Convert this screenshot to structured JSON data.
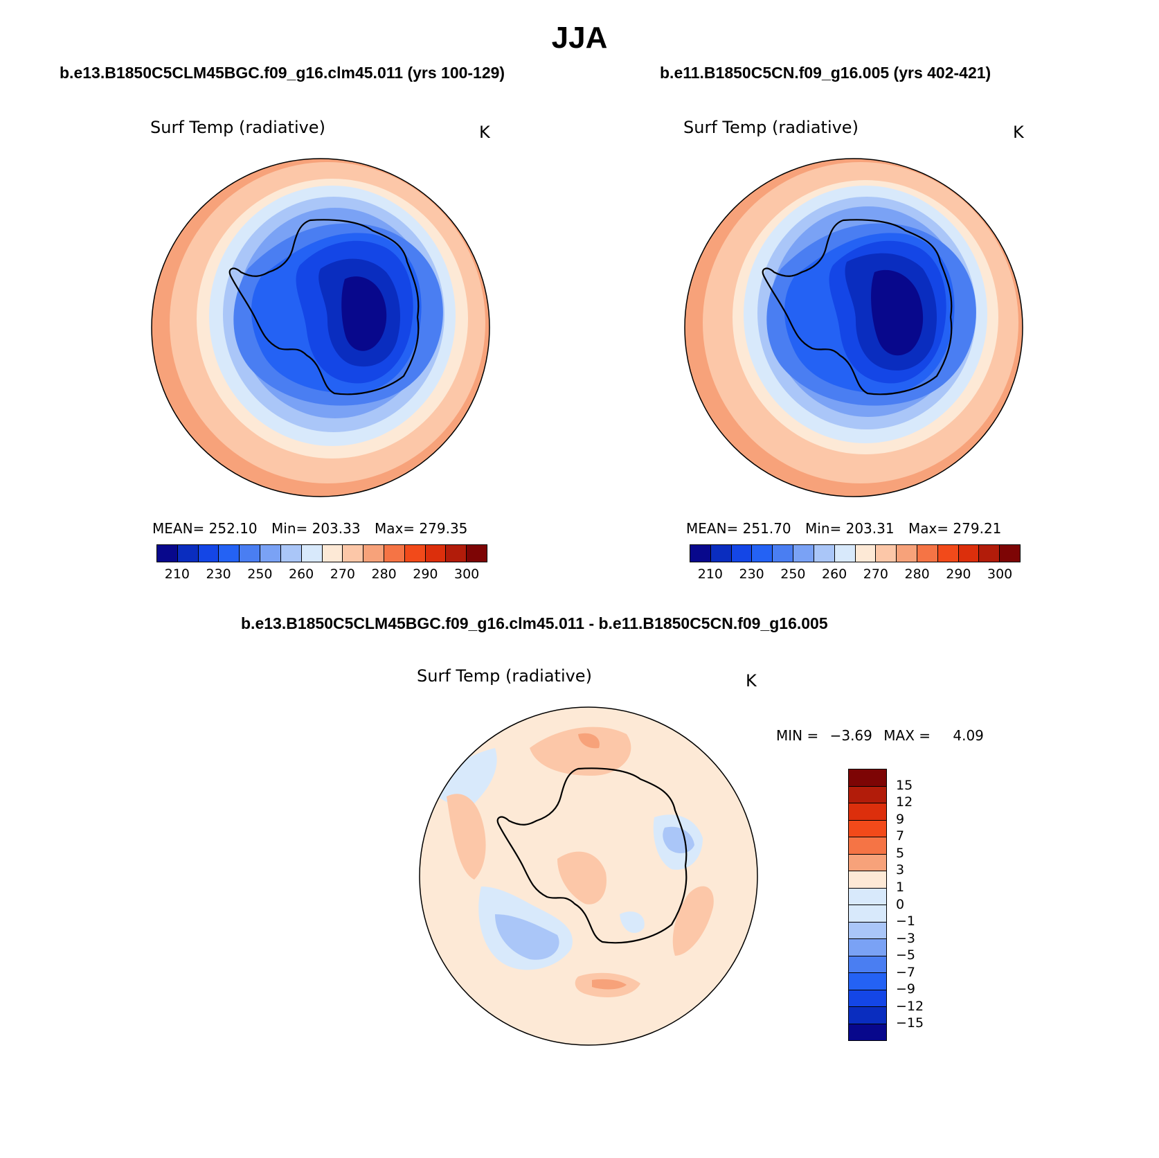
{
  "season": "JJA",
  "panel1": {
    "case": "b.e13.B1850C5CLM45BGC.f09_g16.clm45.011 (yrs 100-129)",
    "variable": "Surf Temp (radiative)",
    "units": "K",
    "mean_label": "MEAN=",
    "mean": "252.10",
    "min_label": "Min=",
    "min": "203.33",
    "max_label": "Max=",
    "max": "279.35"
  },
  "panel2": {
    "case": "b.e11.B1850C5CN.f09_g16.005 (yrs 402-421)",
    "variable": "Surf Temp (radiative)",
    "units": "K",
    "mean_label": "MEAN=",
    "mean": "251.70",
    "min_label": "Min=",
    "min": "203.31",
    "max_label": "Max=",
    "max": "279.21"
  },
  "panel3": {
    "case": "b.e13.B1850C5CLM45BGC.f09_g16.clm45.011 - b.e11.B1850C5CN.f09_g16.005",
    "variable": "Surf Temp (radiative)",
    "units": "K",
    "min_label": "MIN =",
    "min": "−3.69",
    "max_label": "MAX =",
    "max": "4.09"
  },
  "colorbar_abs": {
    "colors": [
      "#08088c",
      "#0a2dbf",
      "#1446e6",
      "#2462f4",
      "#4a7ef2",
      "#7aa2f5",
      "#aac6f8",
      "#d8e9fb",
      "#fde9d6",
      "#fcc7a8",
      "#f7a27a",
      "#f57445",
      "#f24a1a",
      "#dc2f0c",
      "#b21c0a",
      "#7d0505"
    ],
    "labels": [
      "210",
      "230",
      "250",
      "260",
      "270",
      "280",
      "290",
      "300"
    ]
  },
  "colorbar_diff": {
    "colors": [
      "#7d0505",
      "#b21c0a",
      "#dc2f0c",
      "#f24a1a",
      "#f57445",
      "#f7a27a",
      "#fde9d6",
      "#d8e9fb",
      "#aac6f8",
      "#7aa2f5",
      "#4a7ef2",
      "#2462f4",
      "#1446e6",
      "#0a2dbf",
      "#08088c"
    ],
    "labels": [
      "15",
      "12",
      "9",
      "7",
      "5",
      "3",
      "1",
      "0",
      "−1",
      "−3",
      "−5",
      "−7",
      "−9",
      "−12",
      "−15"
    ]
  }
}
